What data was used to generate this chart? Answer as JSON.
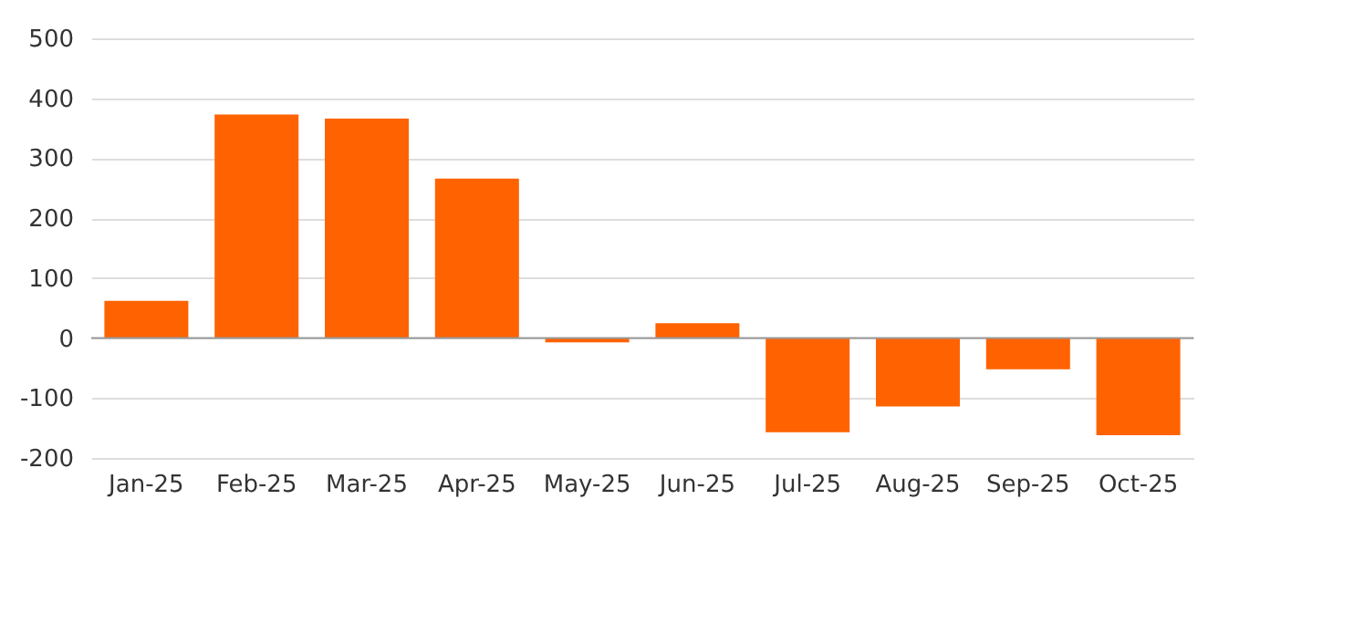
{
  "chart_data": {
    "type": "bar",
    "categories": [
      "Jan-25",
      "Feb-25",
      "Mar-25",
      "Apr-25",
      "May-25",
      "Jun-25",
      "Jul-25",
      "Aug-25",
      "Sep-25",
      "Oct-25"
    ],
    "values": [
      62,
      373,
      366,
      266,
      -7,
      25,
      -157,
      -114,
      -52,
      -162
    ],
    "color": "#ff6200",
    "ylim": [
      -200,
      500
    ],
    "yticks": [
      -200,
      -100,
      0,
      100,
      200,
      300,
      400,
      500
    ],
    "grid": "y"
  }
}
